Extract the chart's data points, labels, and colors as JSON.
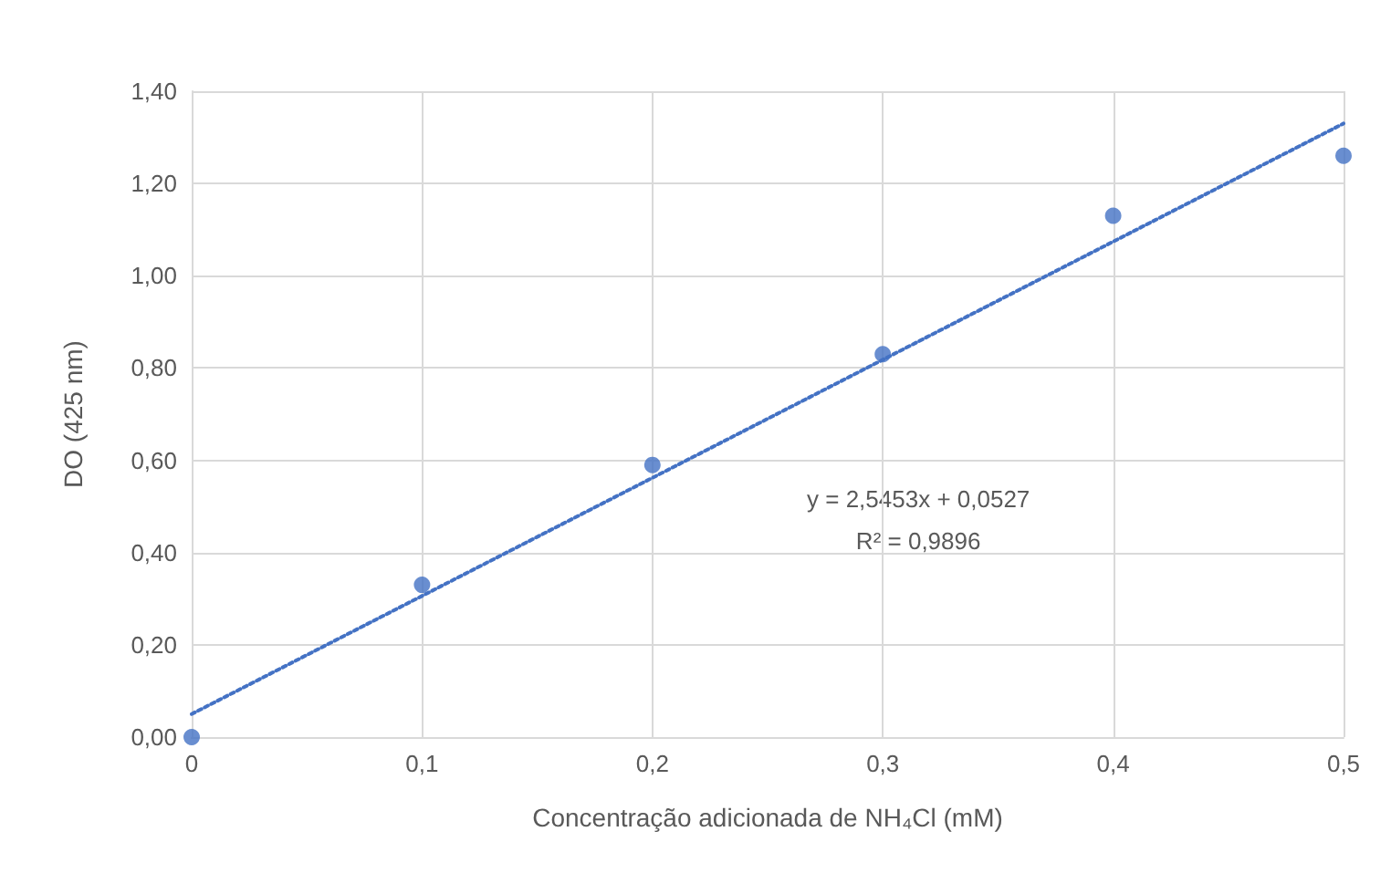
{
  "chart_data": {
    "type": "scatter",
    "xlabel": "Concentração adicionada de NH₄Cl (mM)",
    "ylabel": "DO (425 nm)",
    "x": [
      0,
      0.1,
      0.2,
      0.3,
      0.4,
      0.5
    ],
    "series": [
      {
        "color": "#4472c4",
        "values": [
          0,
          0.33,
          0.59,
          0.83,
          1.13,
          1.26
        ],
        "marker": "circle"
      },
      {
        "type": "line",
        "color": "#4472c4",
        "x": [
          0,
          0.5
        ],
        "values": [
          0.05,
          1.33
        ],
        "line_style": "dotted",
        "marker": "none"
      }
    ],
    "xlim": [
      0,
      0.5
    ],
    "ylim": [
      0,
      1.4
    ],
    "xticks": [
      0,
      {
        "value": 0.1,
        "label": "0,1"
      },
      {
        "value": 0.2,
        "label": "0,2"
      },
      {
        "value": 0.3,
        "label": "0,3"
      },
      {
        "value": 0.4,
        "label": "0,4"
      },
      {
        "value": 0.5,
        "label": "0,5"
      }
    ],
    "yticks": [
      {
        "value": 0,
        "label": "0,00"
      },
      {
        "value": 0.2,
        "label": "0,20"
      },
      {
        "value": 0.4,
        "label": "0,40"
      },
      {
        "value": 0.6,
        "label": "0,60"
      },
      {
        "value": 0.8,
        "label": "0,80"
      },
      {
        "value": 1,
        "label": "1,00"
      },
      {
        "value": 1.2,
        "label": "1,20"
      },
      {
        "value": 1.4,
        "label": "1,40"
      }
    ],
    "grid": true,
    "annotations": [
      "y = 2,5453x + 0,0527",
      "R² = 0,9896"
    ]
  }
}
